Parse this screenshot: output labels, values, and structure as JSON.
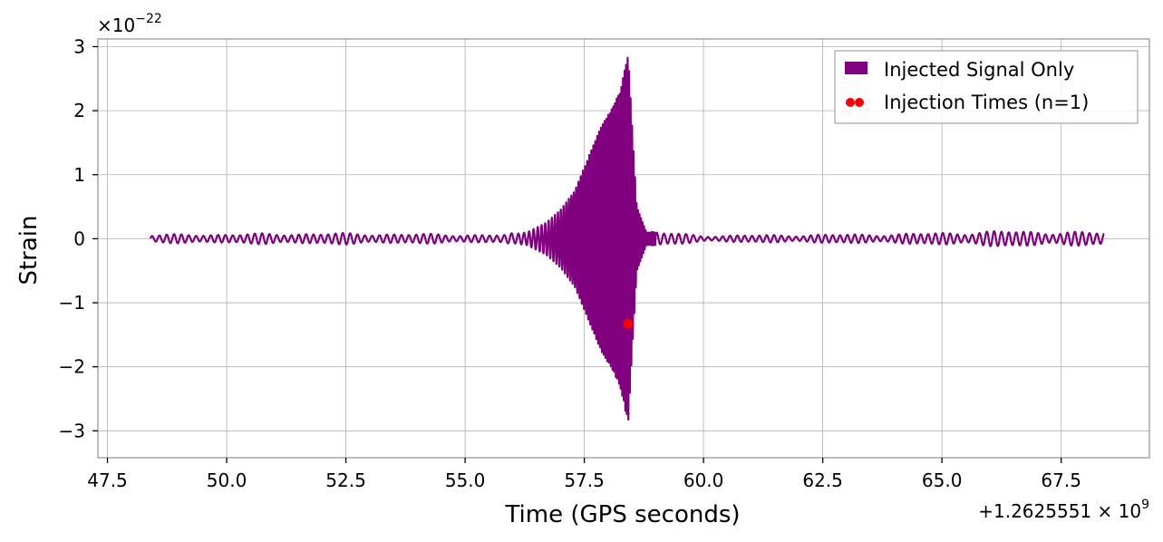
{
  "chart_data": {
    "type": "line",
    "xlabel": "Time (GPS seconds)",
    "ylabel": "Strain",
    "y_scale_label": "×10",
    "y_scale_exponent": "−22",
    "x_offset_label": "+1.2625551 × 10",
    "x_offset_exponent": "9",
    "xlim": [
      47.3,
      69.35
    ],
    "ylim": [
      -3.42,
      3.12
    ],
    "x_ticks": [
      47.5,
      50.0,
      52.5,
      55.0,
      57.5,
      60.0,
      62.5,
      65.0,
      67.5
    ],
    "x_tick_labels": [
      "47.5",
      "50.0",
      "52.5",
      "55.0",
      "57.5",
      "60.0",
      "62.5",
      "65.0",
      "67.5"
    ],
    "y_ticks": [
      3,
      2,
      1,
      0,
      -1,
      -2,
      -3
    ],
    "y_tick_labels": [
      "3",
      "2",
      "1",
      "0",
      "−1",
      "−2",
      "−3"
    ],
    "grid": true,
    "legend_position": "top-right",
    "series": [
      {
        "name": "Injected Signal Only",
        "kind": "line",
        "color": "#800080",
        "x_range": [
          48.4,
          68.4
        ],
        "envelope_points": [
          [
            48.4,
            0.05
          ],
          [
            50.0,
            0.06
          ],
          [
            52.0,
            0.07
          ],
          [
            54.0,
            0.06
          ],
          [
            55.8,
            0.05
          ],
          [
            56.3,
            0.1
          ],
          [
            56.7,
            0.25
          ],
          [
            57.0,
            0.45
          ],
          [
            57.3,
            0.75
          ],
          [
            57.6,
            1.3
          ],
          [
            57.85,
            1.75
          ],
          [
            58.05,
            2.0
          ],
          [
            58.25,
            2.3
          ],
          [
            58.42,
            2.9
          ],
          [
            58.5,
            1.8
          ],
          [
            58.6,
            0.5
          ],
          [
            58.8,
            0.1
          ],
          [
            60.0,
            0.04
          ],
          [
            62.0,
            0.05
          ],
          [
            64.0,
            0.06
          ],
          [
            66.4,
            0.1
          ],
          [
            68.4,
            0.08
          ]
        ]
      },
      {
        "name": "Injection Times (n=1)",
        "kind": "scatter",
        "color": "#ff0000",
        "points": [
          [
            58.42,
            -1.33
          ]
        ]
      }
    ]
  }
}
